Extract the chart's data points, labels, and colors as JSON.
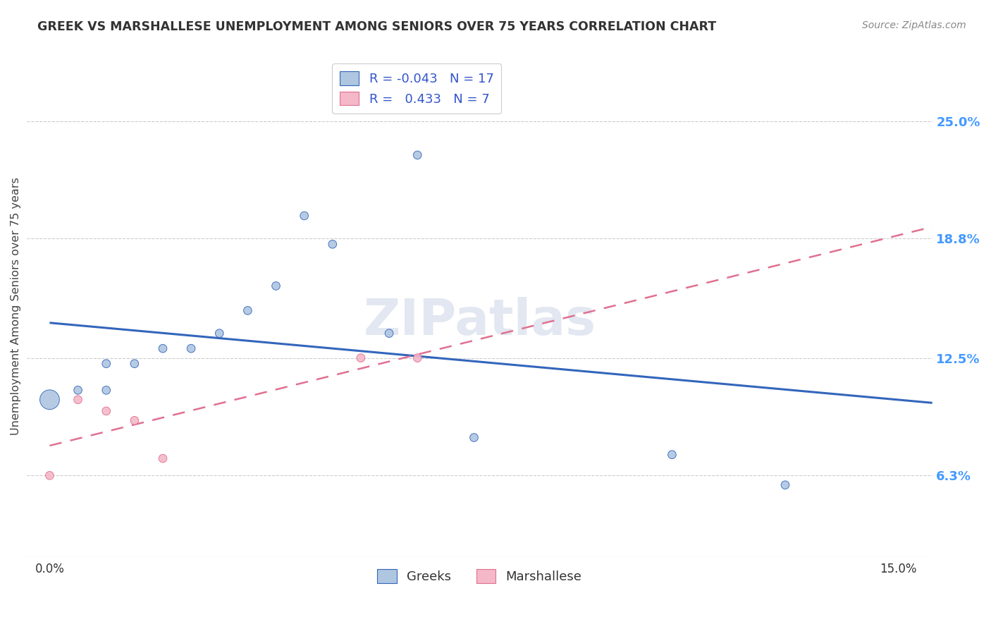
{
  "title": "GREEK VS MARSHALLESE UNEMPLOYMENT AMONG SENIORS OVER 75 YEARS CORRELATION CHART",
  "source": "Source: ZipAtlas.com",
  "ylabel": "Unemployment Among Seniors over 75 years",
  "xlim": [
    -0.004,
    0.156
  ],
  "ylim": [
    0.02,
    0.285
  ],
  "ytick_vals": [
    0.063,
    0.125,
    0.188,
    0.25
  ],
  "ytick_labels": [
    "6.3%",
    "12.5%",
    "18.8%",
    "25.0%"
  ],
  "xtick_vals": [
    0.0,
    0.15
  ],
  "xtick_labels": [
    "0.0%",
    "15.0%"
  ],
  "greek_R": "-0.043",
  "greek_N": "17",
  "marsh_R": "0.433",
  "marsh_N": "7",
  "greek_color": "#aec6e0",
  "marsh_color": "#f4b8c8",
  "trend_greek_color": "#3366bb",
  "trend_marsh_color": "#e07090",
  "watermark": "ZIPatlas",
  "background_color": "#ffffff",
  "greek_points_x": [
    0.0,
    0.005,
    0.01,
    0.01,
    0.015,
    0.02,
    0.025,
    0.03,
    0.035,
    0.04,
    0.045,
    0.05,
    0.06,
    0.065,
    0.075,
    0.11,
    0.13
  ],
  "greek_points_y": [
    0.103,
    0.108,
    0.108,
    0.122,
    0.122,
    0.13,
    0.13,
    0.138,
    0.15,
    0.163,
    0.2,
    0.185,
    0.138,
    0.232,
    0.083,
    0.074,
    0.058
  ],
  "greek_sizes": [
    400,
    70,
    70,
    70,
    70,
    70,
    70,
    70,
    70,
    70,
    70,
    70,
    70,
    70,
    70,
    70,
    70
  ],
  "marsh_points_x": [
    0.0,
    0.005,
    0.01,
    0.015,
    0.02,
    0.055,
    0.065
  ],
  "marsh_points_y": [
    0.063,
    0.103,
    0.097,
    0.092,
    0.072,
    0.125,
    0.125
  ],
  "marsh_sizes": [
    70,
    70,
    70,
    70,
    70,
    70,
    70
  ],
  "legend_color": "#3355cc",
  "r_value_color": "#3355cc",
  "n_value_color": "#333333"
}
